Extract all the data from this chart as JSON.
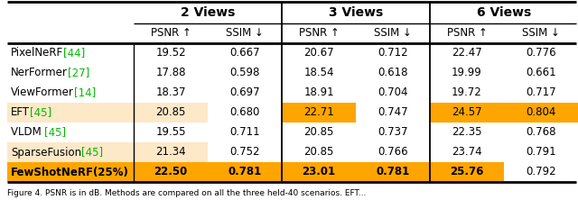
{
  "col_groups": [
    {
      "label": "2 Views",
      "cols": [
        "PSNR ↑",
        "SSIM ↓"
      ]
    },
    {
      "label": "3 Views",
      "cols": [
        "PSNR ↑",
        "SSIM ↓"
      ]
    },
    {
      "label": "6 Views",
      "cols": [
        "PSNR ↑",
        "SSIM ↓"
      ]
    }
  ],
  "methods_base": [
    "PixelNeRF",
    "NerFormer",
    "ViewFormer",
    "EFT",
    "VLDM ",
    "SparseFusion",
    "FewShotNeRF(25%)"
  ],
  "methods_ref": [
    "[44]",
    "[27]",
    "[14]",
    "[45]",
    "[45]",
    "[45]",
    ""
  ],
  "ref_colors": [
    "#00bb00",
    "#00bb00",
    "#00bb00",
    "#00bb00",
    "#00bb00",
    "#00bb00",
    "black"
  ],
  "data": [
    [
      "19.52",
      "0.667",
      "20.67",
      "0.712",
      "22.47",
      "0.776"
    ],
    [
      "17.88",
      "0.598",
      "18.54",
      "0.618",
      "19.99",
      "0.661"
    ],
    [
      "18.37",
      "0.697",
      "18.91",
      "0.704",
      "19.72",
      "0.717"
    ],
    [
      "20.85",
      "0.680",
      "22.71",
      "0.747",
      "24.57",
      "0.804"
    ],
    [
      "19.55",
      "0.711",
      "20.85",
      "0.737",
      "22.35",
      "0.768"
    ],
    [
      "21.34",
      "0.752",
      "20.85",
      "0.766",
      "23.74",
      "0.791"
    ],
    [
      "22.50",
      "0.781",
      "23.01",
      "0.781",
      "25.76",
      "0.792"
    ]
  ],
  "bold": [
    [
      false,
      false,
      false,
      false,
      false,
      false
    ],
    [
      false,
      false,
      false,
      false,
      false,
      false
    ],
    [
      false,
      false,
      false,
      false,
      false,
      false
    ],
    [
      false,
      false,
      false,
      false,
      false,
      false
    ],
    [
      false,
      false,
      false,
      false,
      false,
      false
    ],
    [
      false,
      false,
      false,
      false,
      false,
      false
    ],
    [
      true,
      true,
      true,
      true,
      true,
      false
    ]
  ],
  "method_bold": [
    false,
    false,
    false,
    false,
    false,
    false,
    true
  ],
  "cell_colors": [
    [
      "#ffffff",
      "#ffffff",
      "#ffffff",
      "#ffffff",
      "#ffffff",
      "#ffffff"
    ],
    [
      "#ffffff",
      "#ffffff",
      "#ffffff",
      "#ffffff",
      "#ffffff",
      "#ffffff"
    ],
    [
      "#ffffff",
      "#ffffff",
      "#ffffff",
      "#ffffff",
      "#ffffff",
      "#ffffff"
    ],
    [
      "#fde8c8",
      "#ffffff",
      "#ffa500",
      "#ffffff",
      "#ffa500",
      "#ffa500"
    ],
    [
      "#ffffff",
      "#ffffff",
      "#ffffff",
      "#ffffff",
      "#ffffff",
      "#ffffff"
    ],
    [
      "#fde8c8",
      "#ffffff",
      "#ffffff",
      "#ffffff",
      "#ffffff",
      "#ffffff"
    ],
    [
      "#ffa500",
      "#ffa500",
      "#ffa500",
      "#ffa500",
      "#ffa500",
      "#ffffff"
    ]
  ],
  "row_colors": [
    "#ffffff",
    "#ffffff",
    "#ffffff",
    "#fde8c8",
    "#ffffff",
    "#fde8c8",
    "#ffa500"
  ],
  "caption": "Figure 4. PSNR is in dB. Methods are compared on all the three held-40 scenarios. EFT...",
  "figsize": [
    6.4,
    2.42
  ],
  "dpi": 100
}
